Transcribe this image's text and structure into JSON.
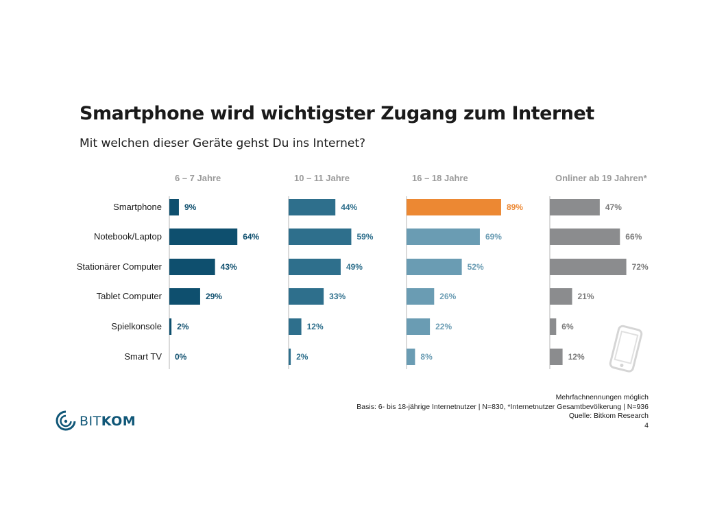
{
  "chart_data": {
    "type": "bar",
    "orientation": "horizontal",
    "title": "Smartphone wird wichtigster Zugang zum Internet",
    "subtitle": "Mit welchen dieser Geräte gehst Du ins Internet?",
    "categories": [
      "Smartphone",
      "Notebook/Laptop",
      "Stationärer Computer",
      "Tablet Computer",
      "Spielkonsole",
      "Smart TV"
    ],
    "series": [
      {
        "name": "6 – 7 Jahre",
        "values": [
          9,
          64,
          43,
          29,
          2,
          0
        ],
        "color": "#0e4f6e",
        "label_color": "#0e4f6e"
      },
      {
        "name": "10 – 11 Jahre",
        "values": [
          44,
          59,
          49,
          33,
          12,
          2
        ],
        "color": "#2e6f8c",
        "label_color": "#2e6f8c"
      },
      {
        "name": "16 – 18 Jahre",
        "values": [
          89,
          69,
          52,
          26,
          22,
          8
        ],
        "color": "#6a9cb3",
        "label_color": "#6a9cb3",
        "highlight": {
          "index": 0,
          "color": "#ec8833"
        }
      },
      {
        "name": "Onliner ab 19 Jahren*",
        "values": [
          47,
          66,
          72,
          21,
          6,
          12
        ],
        "color": "#8b8c8e",
        "label_color": "#7a7a7a"
      }
    ],
    "value_suffix": "%",
    "xlim": [
      0,
      100
    ],
    "grid": false,
    "legend": "none"
  },
  "notes": {
    "line1": "Mehrfachnennungen möglich",
    "line2": "Basis: 6- bis 18-jährige Internetnutzer | N=830, *Internetnutzer Gesamtbevölkerung | N=936",
    "line3": "Quelle: Bitkom Research",
    "page_number": "4"
  },
  "logo": {
    "text_regular": "BIT",
    "text_bold": "KOM",
    "color": "#0f5677"
  },
  "decor": {
    "icon": "smartphone-icon"
  }
}
